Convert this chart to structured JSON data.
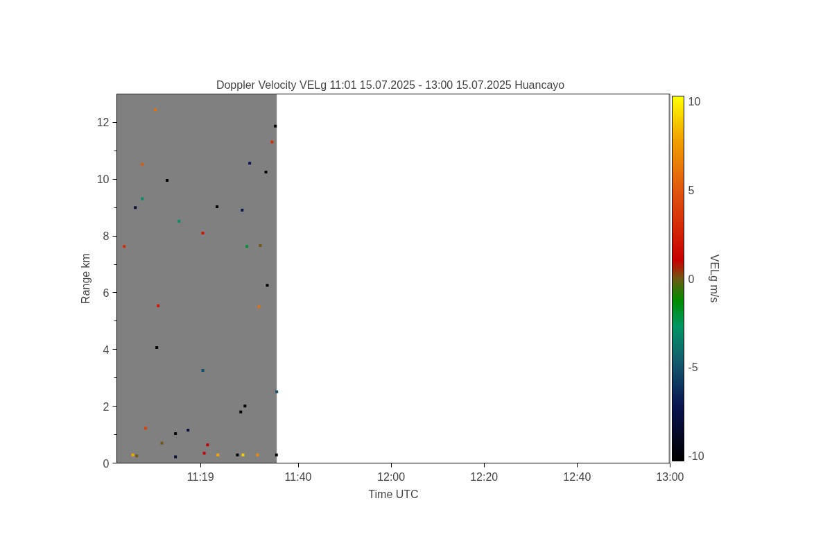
{
  "chart_data": {
    "type": "scatter",
    "title": "Doppler Velocity VELg   11:01 15.07.2025 - 13:00 15.07.2025 Huancayo",
    "xlabel": "Time UTC",
    "ylabel": "Range km",
    "clabel": "VELg m/s",
    "xlim": [
      11.0167,
      13.0
    ],
    "ylim": [
      0,
      13
    ],
    "xticks": [
      {
        "value": 11.3167,
        "label": "11:19"
      },
      {
        "value": 11.6667,
        "label": "11:40"
      },
      {
        "value": 12.0,
        "label": "12:00"
      },
      {
        "value": 12.3333,
        "label": "12:20"
      },
      {
        "value": 12.6667,
        "label": "12:40"
      },
      {
        "value": 13.0,
        "label": "13:00"
      }
    ],
    "yticks": [
      0,
      2,
      4,
      6,
      8,
      10,
      12
    ],
    "clim": [
      -10.3,
      10.3
    ],
    "cticks": [
      -10,
      -5,
      0,
      5,
      10
    ],
    "marker": "square",
    "grid": false,
    "bands": [
      {
        "axis": "x",
        "from": 11.0167,
        "to": 11.59,
        "color": "#808080"
      },
      {
        "axis": "x",
        "from": 12.995,
        "to": 13.0,
        "color": "#808080"
      }
    ],
    "x": [
      11.155,
      11.585,
      11.573,
      11.108,
      11.493,
      11.551,
      11.197,
      11.108,
      11.083,
      11.376,
      11.466,
      11.24,
      11.325,
      11.043,
      11.483,
      11.531,
      11.556,
      11.165,
      11.526,
      11.16,
      11.325,
      11.59,
      11.476,
      11.461,
      11.12,
      11.272,
      11.227,
      11.178,
      11.074,
      11.33,
      11.469,
      11.449,
      11.521,
      11.342,
      11.088,
      11.227,
      11.379,
      11.589
    ],
    "values": [
      12.44,
      11.87,
      11.31,
      10.52,
      10.56,
      10.25,
      9.96,
      9.31,
      9.0,
      9.03,
      8.91,
      8.52,
      8.1,
      7.63,
      7.63,
      7.66,
      6.26,
      5.54,
      5.5,
      4.07,
      3.26,
      2.51,
      2.01,
      1.8,
      1.23,
      1.16,
      1.04,
      0.7,
      0.29,
      0.35,
      0.29,
      0.29,
      0.29,
      0.64,
      0.25,
      0.22,
      0.29,
      0.29
    ],
    "cvalues": [
      6,
      -10,
      3,
      5,
      -7,
      -10,
      -10,
      -3,
      -8,
      -10,
      -7,
      -3,
      2,
      3,
      -2,
      0,
      -10,
      2,
      6,
      -10,
      -5,
      -5,
      -10,
      -10,
      4,
      -8,
      -10,
      0,
      8,
      1,
      9,
      -10,
      7,
      1,
      0,
      -8,
      8,
      -10
    ]
  }
}
